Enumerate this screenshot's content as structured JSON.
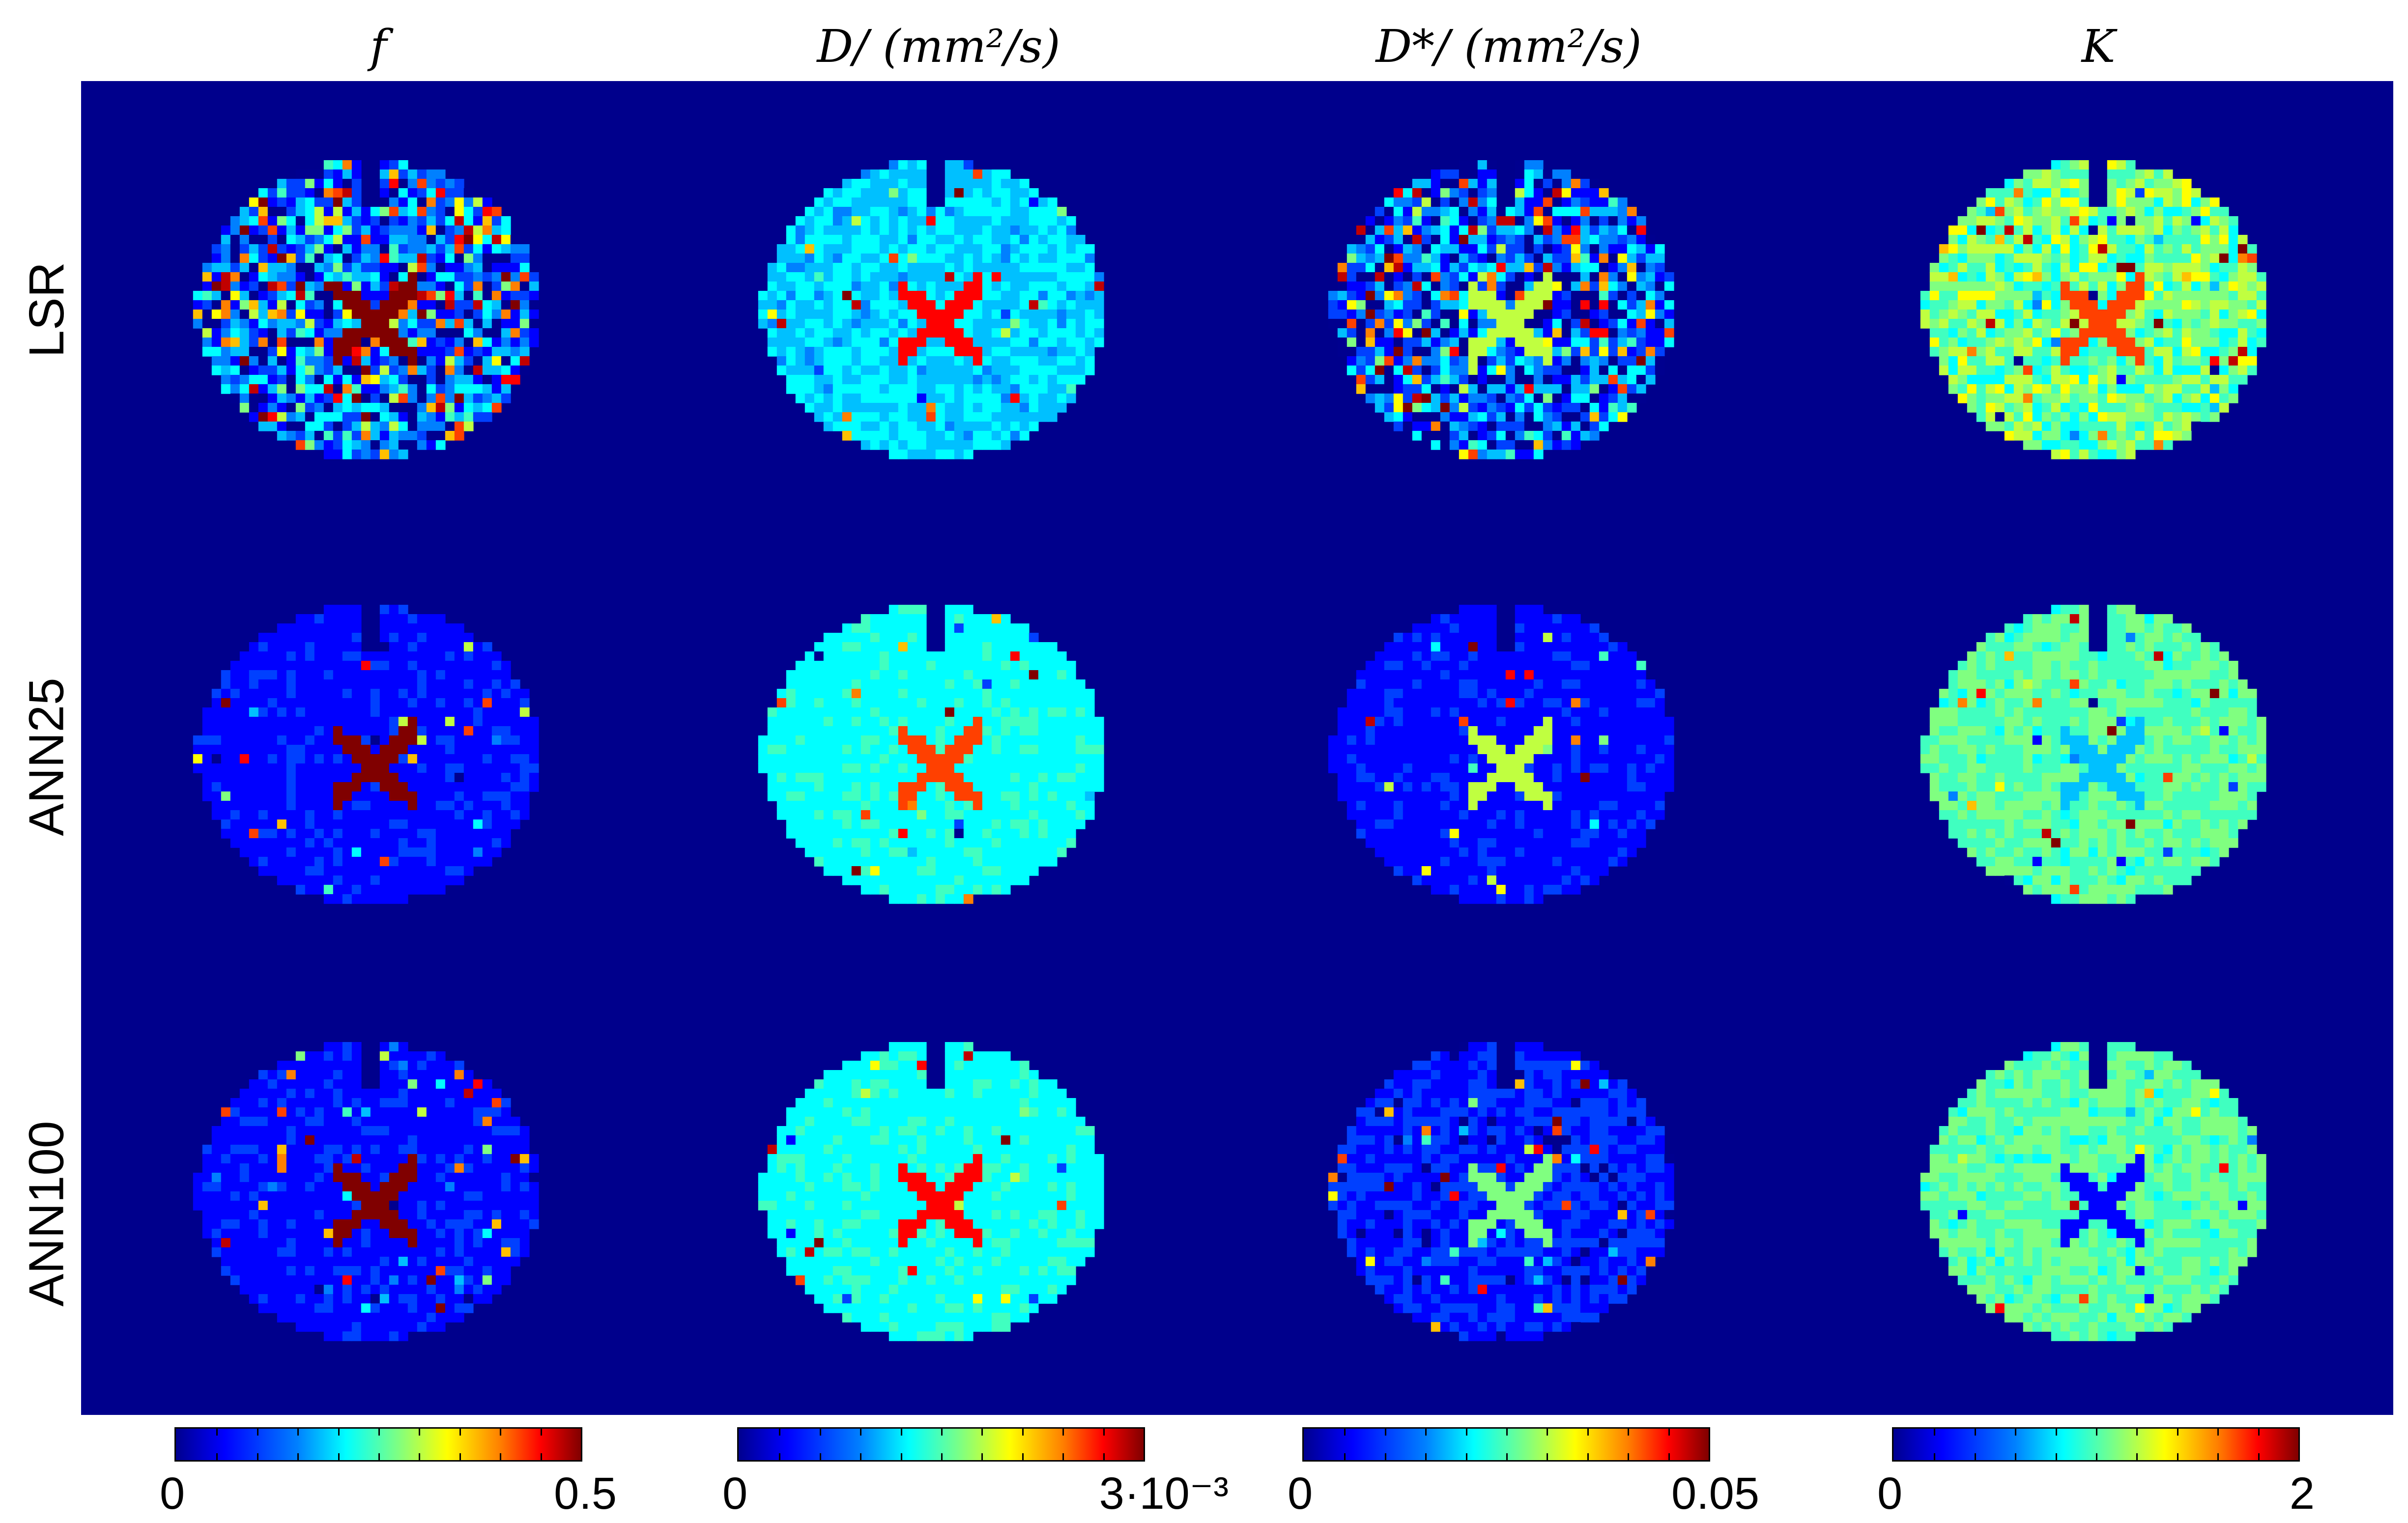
{
  "columns": [
    {
      "title": "f",
      "cmin": "0",
      "cmax": "0.5"
    },
    {
      "title": "D/ (mm²/s)",
      "cmin": "0",
      "cmax": "3·10⁻³"
    },
    {
      "title": "D*/ (mm²/s)",
      "cmin": "0",
      "cmax": "0.05"
    },
    {
      "title": "K",
      "cmin": "0",
      "cmax": "2"
    }
  ],
  "rows": [
    "LSR",
    "ANN25",
    "ANN100"
  ],
  "colors": {
    "background": "#00008c",
    "colormap": "jet"
  }
}
